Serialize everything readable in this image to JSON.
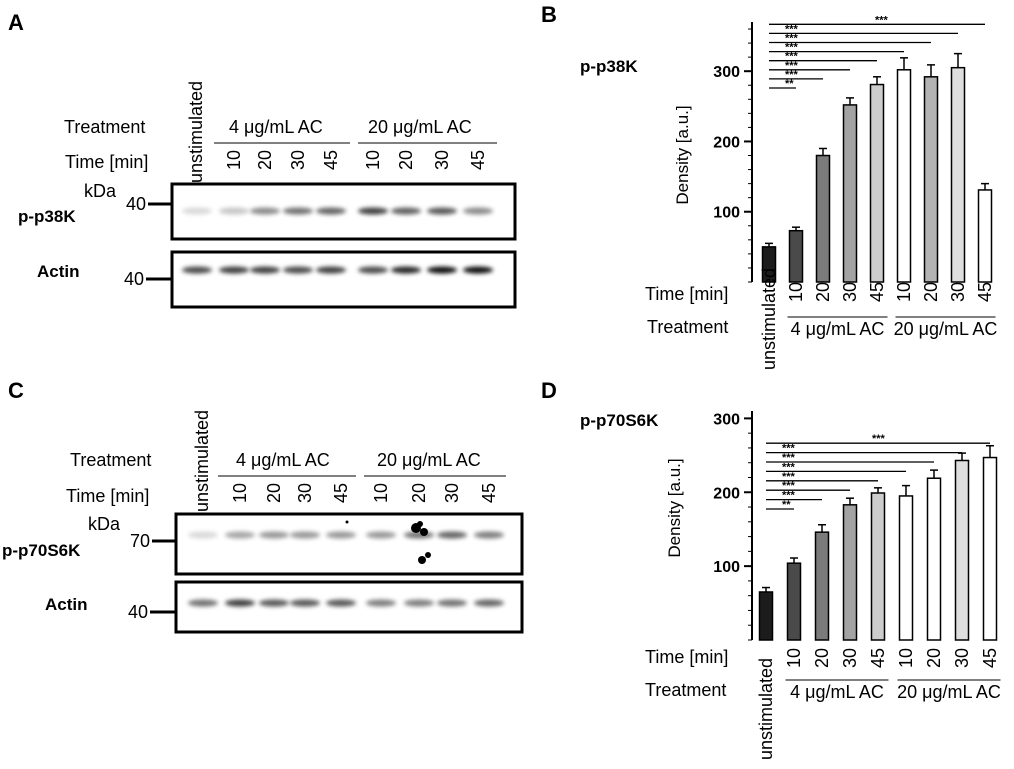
{
  "panels": [
    {
      "letter": "A",
      "protein": "p-p38K",
      "marker_kda": "kDa",
      "marker_protein": "40",
      "marker_actin": "40",
      "loading_label": "Actin",
      "treatment_label": "Treatment",
      "time_label": "Time [min]",
      "control_label": "unstimulated",
      "groups": [
        "4 μg/mL AC",
        "20 μg/mL AC"
      ],
      "times": [
        "10",
        "20",
        "30",
        "45",
        "10",
        "20",
        "30",
        "45"
      ]
    },
    {
      "letter": "C",
      "protein": "p-p70S6K",
      "marker_kda": "kDa",
      "marker_protein": "70",
      "marker_actin": "40",
      "loading_label": "Actin",
      "treatment_label": "Treatment",
      "time_label": "Time [min]",
      "control_label": "unstimulated",
      "groups": [
        "4 μg/mL AC",
        "20 μg/mL AC"
      ],
      "times": [
        "10",
        "20",
        "30",
        "45",
        "10",
        "20",
        "30",
        "45"
      ]
    }
  ],
  "chart_data": [
    {
      "panel": "B",
      "type": "bar",
      "title": "p-p38K",
      "ylabel": "Density [a.u.]",
      "ylim": [
        0,
        370
      ],
      "yticks": [
        100,
        200,
        300
      ],
      "time_label": "Time [min]",
      "treatment_label": "Treatment",
      "categories": [
        "unstimulated",
        "10",
        "20",
        "30",
        "45",
        "10",
        "20",
        "30",
        "45"
      ],
      "groups": [
        "4 μg/mL AC",
        "20 μg/mL AC"
      ],
      "values": [
        50,
        73,
        180,
        252,
        281,
        302,
        292,
        305,
        131
      ],
      "errors": [
        5,
        5,
        10,
        10,
        11,
        17,
        17,
        20,
        9
      ],
      "bar_colors": [
        "#1c1c1c",
        "#4a4a4a",
        "#7b7b7b",
        "#a3a3a3",
        "#cdcdcd",
        "#ffffff",
        "#b3b3b3",
        "#dedede",
        "#ffffff"
      ],
      "significance": [
        "**",
        "***",
        "***",
        "***",
        "***",
        "***",
        "***",
        "***"
      ]
    },
    {
      "panel": "D",
      "type": "bar",
      "title": "p-p70S6K",
      "ylabel": "Density [a.u.]",
      "ylim": [
        0,
        310
      ],
      "yticks": [
        100,
        200,
        300
      ],
      "time_label": "Time [min]",
      "treatment_label": "Treatment",
      "categories": [
        "unstimulated",
        "10",
        "20",
        "30",
        "45",
        "10",
        "20",
        "30",
        "45"
      ],
      "groups": [
        "4 μg/mL AC",
        "20 μg/mL AC"
      ],
      "values": [
        65,
        104,
        146,
        183,
        199,
        195,
        219,
        243,
        247
      ],
      "errors": [
        6,
        7,
        10,
        9,
        7,
        14,
        11,
        10,
        16
      ],
      "bar_colors": [
        "#1c1c1c",
        "#4a4a4a",
        "#7b7b7b",
        "#a3a3a3",
        "#cdcdcd",
        "#ffffff",
        "#ffffff",
        "#dedede",
        "#ffffff"
      ],
      "significance": [
        "**",
        "***",
        "***",
        "***",
        "***",
        "***",
        "***",
        "***"
      ]
    }
  ]
}
